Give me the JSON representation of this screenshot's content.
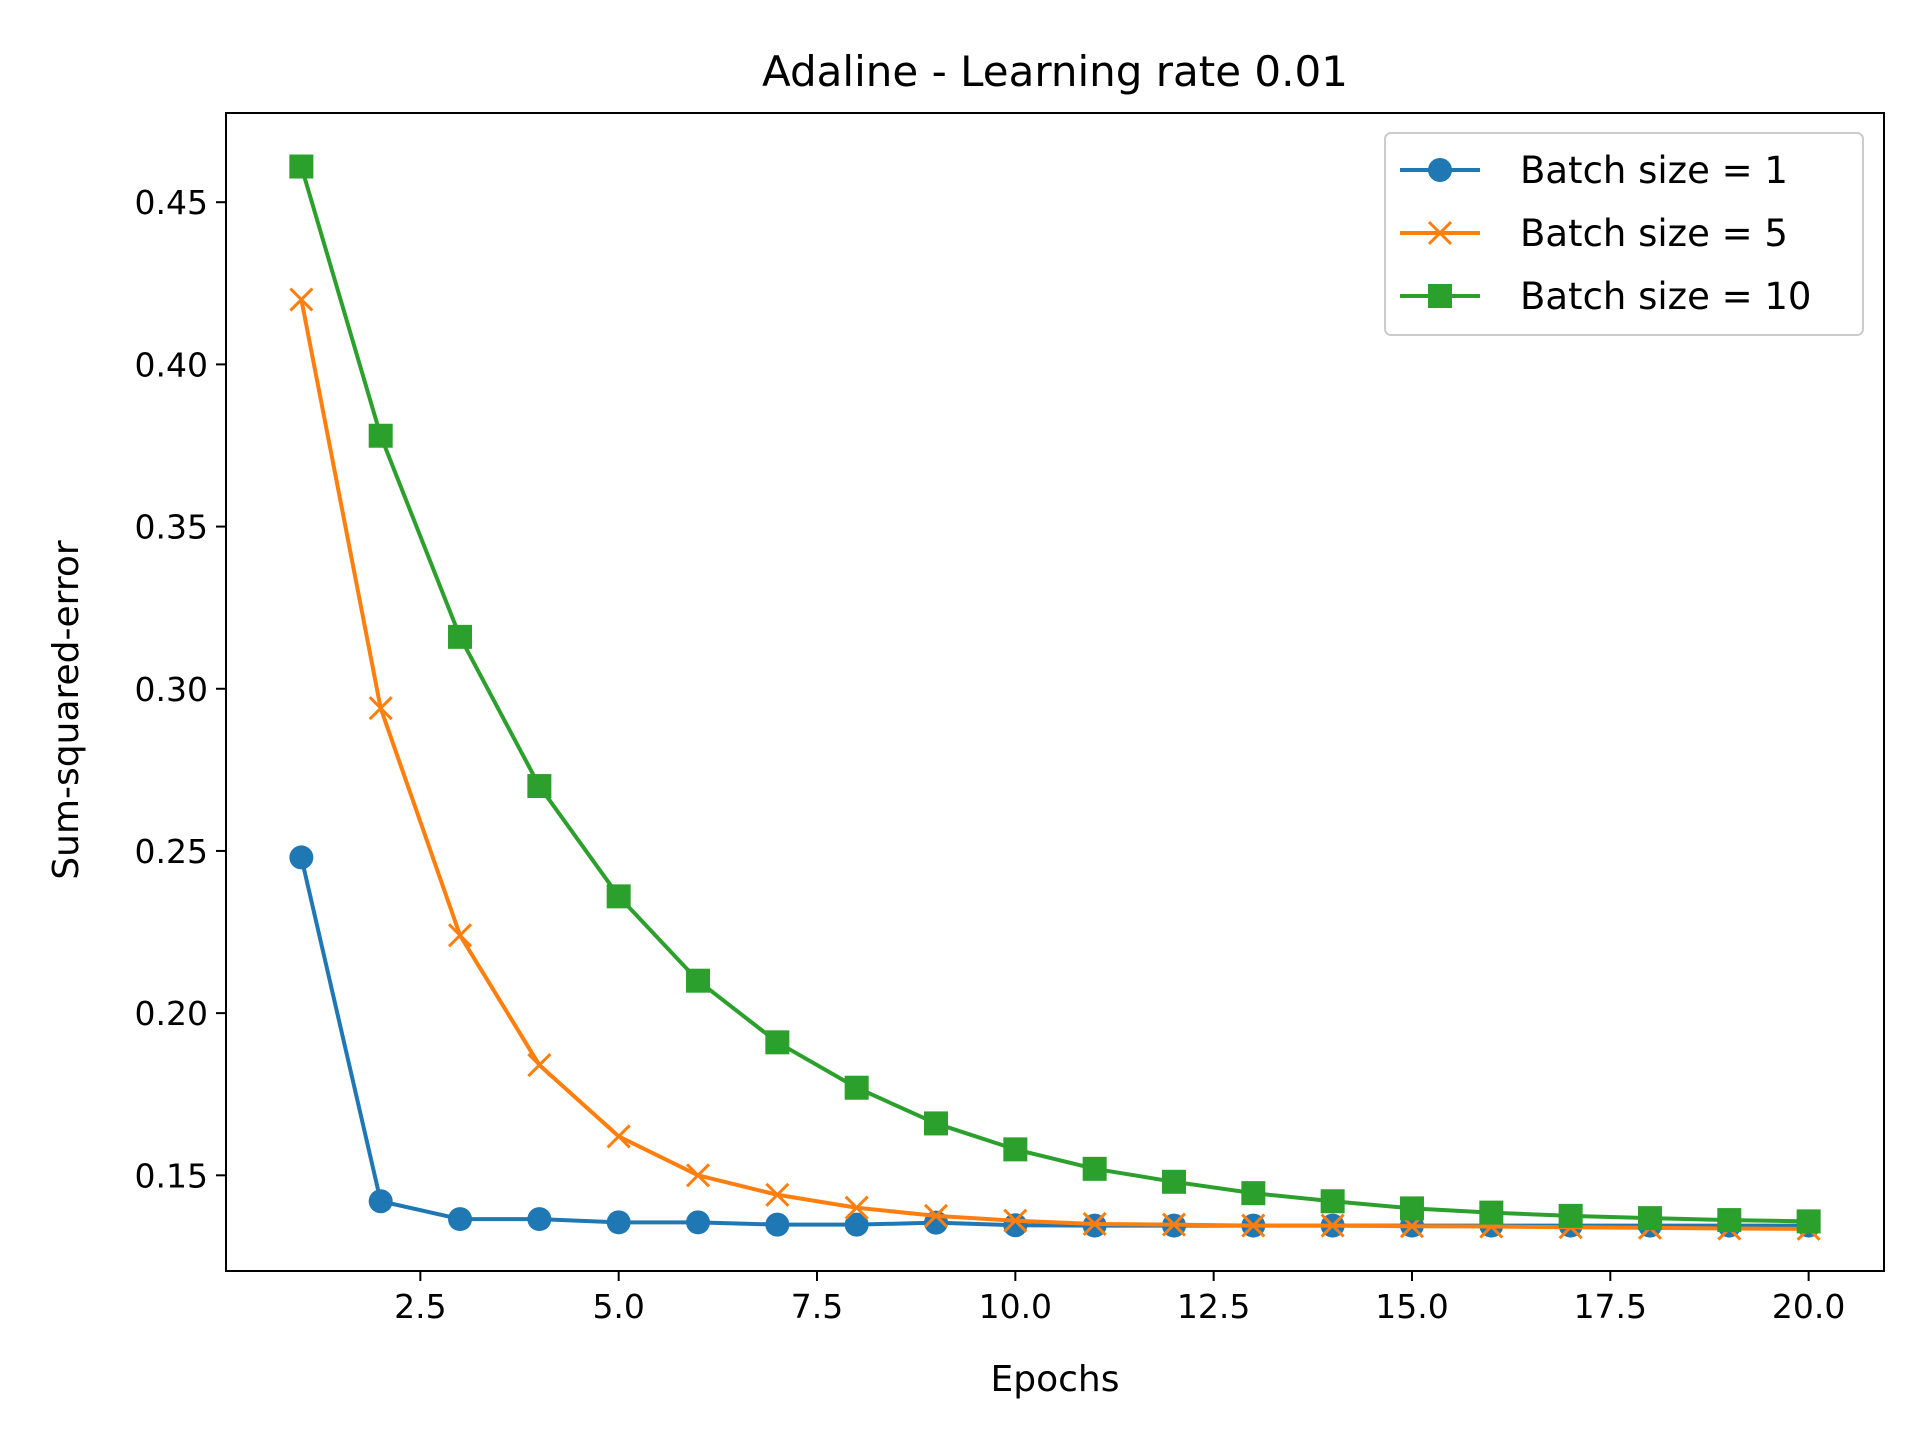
{
  "chart_data": {
    "type": "line",
    "title": "Adaline - Learning rate 0.01",
    "xlabel": "Epochs",
    "ylabel": "Sum-squared-error",
    "xlim": [
      0.05,
      20.95
    ],
    "ylim": [
      0.1205,
      0.4775
    ],
    "xticks": [
      2.5,
      5.0,
      7.5,
      10.0,
      12.5,
      15.0,
      17.5,
      20.0
    ],
    "xtick_labels": [
      "2.5",
      "5.0",
      "7.5",
      "10.0",
      "12.5",
      "15.0",
      "17.5",
      "20.0"
    ],
    "yticks": [
      0.15,
      0.2,
      0.25,
      0.3,
      0.35,
      0.4,
      0.45
    ],
    "ytick_labels": [
      "0.15",
      "0.20",
      "0.25",
      "0.30",
      "0.35",
      "0.40",
      "0.45"
    ],
    "grid": false,
    "legend_position": "top-right",
    "x": [
      1,
      2,
      3,
      4,
      5,
      6,
      7,
      8,
      9,
      10,
      11,
      12,
      13,
      14,
      15,
      16,
      17,
      18,
      19,
      20
    ],
    "series": [
      {
        "name": "Batch size = 1",
        "color": "#1f77b4",
        "marker": "circle",
        "values": [
          0.248,
          0.142,
          0.1365,
          0.1365,
          0.1355,
          0.1355,
          0.1348,
          0.1348,
          0.1354,
          0.1346,
          0.1345,
          0.1345,
          0.1345,
          0.1345,
          0.1345,
          0.1345,
          0.1345,
          0.1345,
          0.1345,
          0.1345
        ]
      },
      {
        "name": "Batch size = 5",
        "color": "#ff7f0e",
        "marker": "x",
        "values": [
          0.42,
          0.294,
          0.224,
          0.184,
          0.162,
          0.15,
          0.144,
          0.14,
          0.1375,
          0.136,
          0.135,
          0.1348,
          0.1345,
          0.1345,
          0.1343,
          0.1342,
          0.134,
          0.1338,
          0.1336,
          0.1335
        ]
      },
      {
        "name": "Batch size = 10",
        "color": "#2ca02c",
        "marker": "square",
        "values": [
          0.461,
          0.378,
          0.316,
          0.27,
          0.236,
          0.21,
          0.191,
          0.177,
          0.166,
          0.158,
          0.152,
          0.148,
          0.1445,
          0.142,
          0.1398,
          0.1385,
          0.1375,
          0.1368,
          0.1362,
          0.1358
        ]
      }
    ]
  }
}
